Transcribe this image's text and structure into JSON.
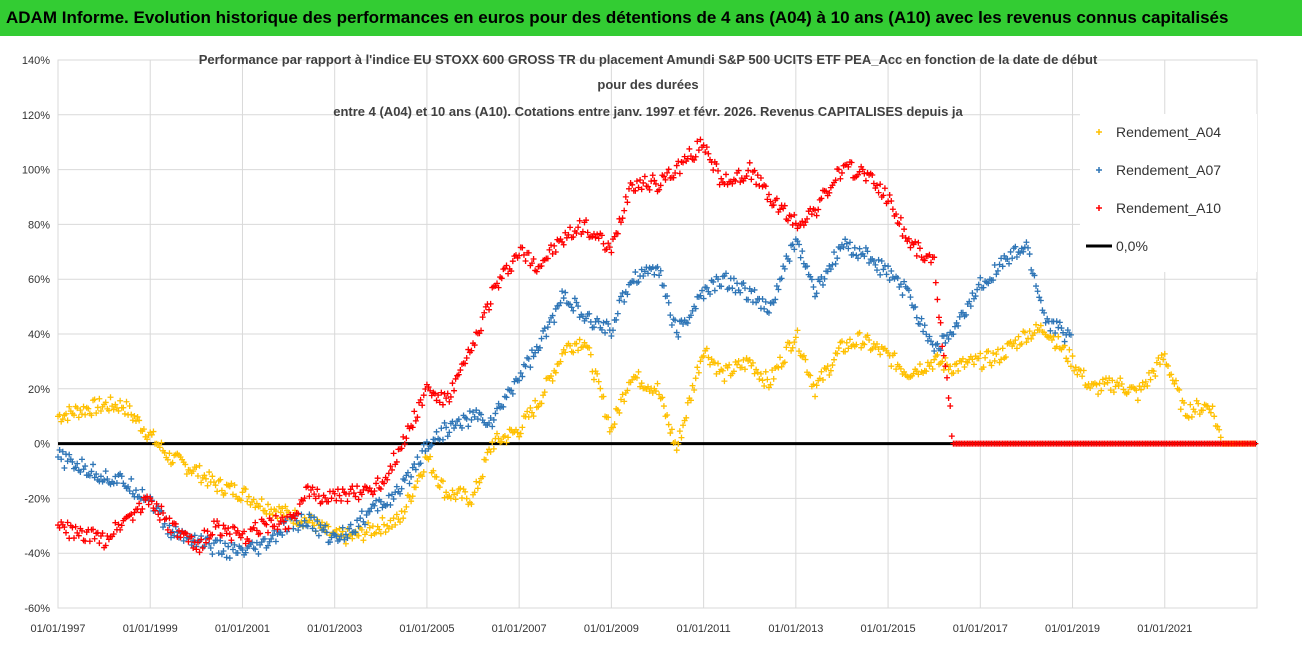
{
  "banner": "ADAM Informe. Evolution historique des performances en euros pour des détentions de 4 ans (A04) à 10 ans (A10) avec les revenus connus capitalisés",
  "chart_data": {
    "type": "scatter",
    "title_lines": [
      "Performance par rapport à l'indice EU STOXX 600 GROSS TR  du placement Amundi S&P 500 UCITS ETF PEA_Acc en fonction de la date de début",
      "pour des durées",
      "entre 4 (A04) et 10 ans (A10). Cotations entre janv. 1997 et févr. 2026. Revenus CAPITALISES depuis ja"
    ],
    "x_range": [
      "1997-01-01",
      "2023-01-01"
    ],
    "x_ticks": [
      "01/01/1997",
      "01/01/1999",
      "01/01/2001",
      "01/01/2003",
      "01/01/2005",
      "01/01/2007",
      "01/01/2009",
      "01/01/2011",
      "01/01/2013",
      "01/01/2015",
      "01/01/2017",
      "01/01/2019",
      "01/01/2021"
    ],
    "y_range": [
      -60,
      140
    ],
    "y_ticks": [
      "-60%",
      "-40%",
      "-20%",
      "0%",
      "20%",
      "40%",
      "60%",
      "80%",
      "100%",
      "120%",
      "140%"
    ],
    "y_unit": "%",
    "grid": true,
    "legend_position": "right",
    "series": [
      {
        "name": "Rendement_A04",
        "color": "#ffc000",
        "marker": "+",
        "x": [
          "1997-01-01",
          "1997-06-01",
          "1998-01-01",
          "1998-06-01",
          "1999-01-01",
          "1999-06-01",
          "2000-01-01",
          "2000-06-01",
          "2001-01-01",
          "2001-06-01",
          "2002-01-01",
          "2002-06-01",
          "2003-01-01",
          "2003-06-01",
          "2004-01-01",
          "2004-06-01",
          "2005-01-01",
          "2005-06-01",
          "2006-01-01",
          "2006-06-01",
          "2007-01-01",
          "2007-06-01",
          "2008-01-01",
          "2008-06-01",
          "2009-01-01",
          "2009-06-01",
          "2010-01-01",
          "2010-06-01",
          "2011-01-01",
          "2011-06-01",
          "2012-01-01",
          "2012-06-01",
          "2013-01-01",
          "2013-06-01",
          "2014-01-01",
          "2014-06-01",
          "2015-01-01",
          "2015-06-01",
          "2016-01-01",
          "2016-06-01",
          "2017-01-01",
          "2017-06-01",
          "2018-01-01",
          "2018-06-01",
          "2019-01-01",
          "2019-06-01",
          "2020-01-01",
          "2020-06-01",
          "2021-01-01",
          "2021-06-01",
          "2022-01-01",
          "2022-04-01",
          "2022-12-31"
        ],
        "y": [
          10,
          12,
          14,
          14,
          3,
          -5,
          -10,
          -15,
          -18,
          -22,
          -26,
          -28,
          -34,
          -34,
          -30,
          -28,
          -5,
          -18,
          -20,
          0,
          5,
          15,
          35,
          38,
          5,
          25,
          20,
          -2,
          35,
          25,
          30,
          22,
          40,
          20,
          35,
          38,
          32,
          26,
          30,
          28,
          30,
          32,
          40,
          42,
          30,
          20,
          22,
          18,
          32,
          12,
          14,
          0,
          0
        ]
      },
      {
        "name": "Rendement_A07",
        "color": "#2e75b6",
        "marker": "+",
        "x": [
          "1997-01-01",
          "1997-06-01",
          "1998-01-01",
          "1998-06-01",
          "1999-01-01",
          "1999-06-01",
          "2000-01-01",
          "2000-06-01",
          "2001-01-01",
          "2001-06-01",
          "2002-01-01",
          "2002-06-01",
          "2003-01-01",
          "2003-06-01",
          "2004-01-01",
          "2004-06-01",
          "2005-01-01",
          "2005-06-01",
          "2006-01-01",
          "2006-06-01",
          "2007-01-01",
          "2007-06-01",
          "2008-01-01",
          "2008-06-01",
          "2009-01-01",
          "2009-06-01",
          "2010-01-01",
          "2010-06-01",
          "2011-01-01",
          "2011-06-01",
          "2012-01-01",
          "2012-06-01",
          "2013-01-01",
          "2013-06-01",
          "2014-01-01",
          "2014-06-01",
          "2015-01-01",
          "2015-06-01",
          "2016-01-01",
          "2016-06-01",
          "2017-01-01",
          "2017-06-01",
          "2018-01-01",
          "2018-06-01",
          "2019-01-01"
        ],
        "y": [
          -5,
          -8,
          -12,
          -14,
          -20,
          -32,
          -35,
          -38,
          -40,
          -38,
          -30,
          -28,
          -35,
          -30,
          -22,
          -18,
          0,
          5,
          10,
          8,
          25,
          35,
          55,
          45,
          42,
          60,
          65,
          40,
          55,
          60,
          55,
          48,
          75,
          55,
          72,
          70,
          62,
          55,
          35,
          40,
          58,
          65,
          72,
          45,
          38
        ]
      },
      {
        "name": "Rendement_A10",
        "color": "#ff0000",
        "marker": "+",
        "x": [
          "1997-01-01",
          "1997-06-01",
          "1998-01-01",
          "1998-06-01",
          "1999-01-01",
          "1999-06-01",
          "2000-01-01",
          "2000-06-01",
          "2001-01-01",
          "2001-06-01",
          "2002-01-01",
          "2002-06-01",
          "2003-01-01",
          "2003-06-01",
          "2004-01-01",
          "2004-06-01",
          "2005-01-01",
          "2005-06-01",
          "2006-01-01",
          "2006-06-01",
          "2007-01-01",
          "2007-06-01",
          "2008-01-01",
          "2008-06-01",
          "2009-01-01",
          "2009-06-01",
          "2010-01-01",
          "2010-06-01",
          "2011-01-01",
          "2011-06-01",
          "2012-01-01",
          "2012-06-01",
          "2013-01-01",
          "2013-06-01",
          "2014-01-01",
          "2014-06-01",
          "2015-01-01",
          "2015-06-01",
          "2016-01-01",
          "2016-06-01",
          "2017-01-01",
          "2018-01-01",
          "2019-01-01",
          "2020-01-01",
          "2021-01-01",
          "2022-01-01",
          "2022-12-31"
        ],
        "y": [
          -30,
          -33,
          -35,
          -28,
          -20,
          -30,
          -38,
          -30,
          -35,
          -30,
          -28,
          -18,
          -20,
          -18,
          -15,
          -2,
          20,
          15,
          35,
          55,
          70,
          65,
          75,
          80,
          70,
          95,
          95,
          100,
          110,
          95,
          100,
          90,
          80,
          85,
          100,
          100,
          90,
          75,
          65,
          0,
          0,
          0,
          0,
          0,
          0,
          0,
          0
        ]
      },
      {
        "name": "0,0%",
        "color": "#000000",
        "marker": "line",
        "x": [
          "1997-01-01",
          "2023-01-01"
        ],
        "y": [
          0,
          0
        ]
      }
    ]
  }
}
